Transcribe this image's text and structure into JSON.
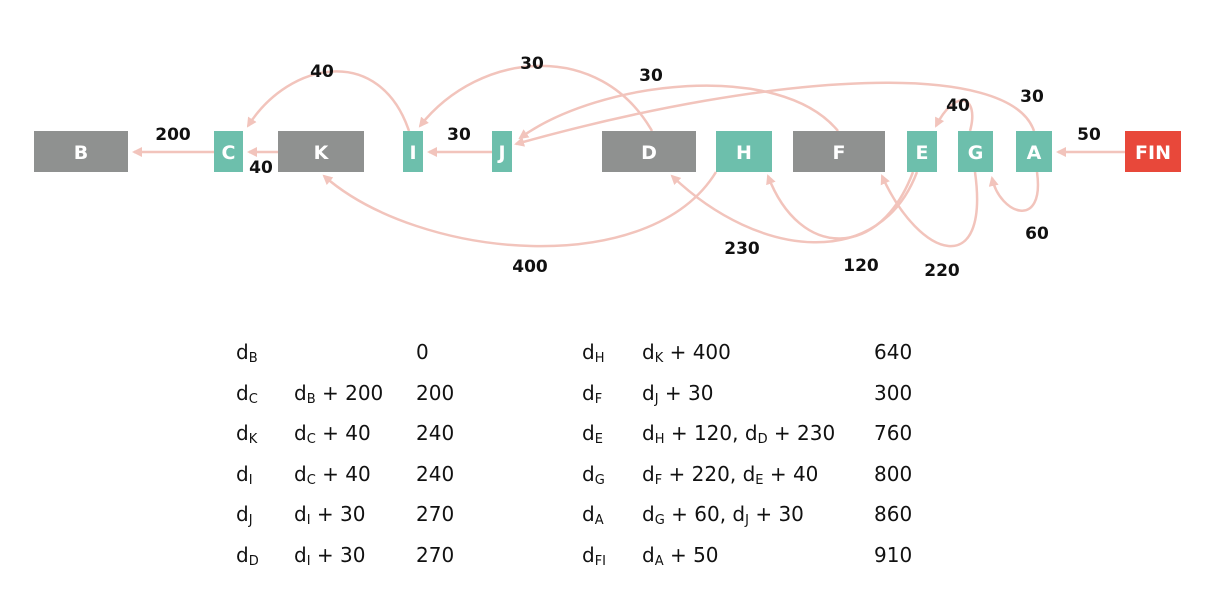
{
  "colors": {
    "gray": "#8f9190",
    "teal": "#6dbfac",
    "red": "#e8483a",
    "edge": "#f2c4bc"
  },
  "nodes": [
    {
      "id": "B",
      "label": "B",
      "color": "gray"
    },
    {
      "id": "C",
      "label": "C",
      "color": "teal"
    },
    {
      "id": "K",
      "label": "K",
      "color": "gray"
    },
    {
      "id": "I",
      "label": "I",
      "color": "teal"
    },
    {
      "id": "J",
      "label": "J",
      "color": "teal"
    },
    {
      "id": "D",
      "label": "D",
      "color": "gray"
    },
    {
      "id": "H",
      "label": "H",
      "color": "teal"
    },
    {
      "id": "F",
      "label": "F",
      "color": "gray"
    },
    {
      "id": "E",
      "label": "E",
      "color": "teal"
    },
    {
      "id": "G",
      "label": "G",
      "color": "teal"
    },
    {
      "id": "A",
      "label": "A",
      "color": "teal"
    },
    {
      "id": "FIN",
      "label": "FIN",
      "color": "red"
    }
  ],
  "edges": [
    {
      "from": "C",
      "to": "B",
      "weight": "200"
    },
    {
      "from": "K",
      "to": "C",
      "weight": "40"
    },
    {
      "from": "I",
      "to": "C",
      "weight": "40"
    },
    {
      "from": "J",
      "to": "I",
      "weight": "30"
    },
    {
      "from": "D",
      "to": "I",
      "weight": "30"
    },
    {
      "from": "F",
      "to": "J",
      "weight": "30"
    },
    {
      "from": "H",
      "to": "K",
      "weight": "400"
    },
    {
      "from": "E",
      "to": "D",
      "weight": "230"
    },
    {
      "from": "E",
      "to": "H",
      "weight": "120"
    },
    {
      "from": "G",
      "to": "F",
      "weight": "220"
    },
    {
      "from": "G",
      "to": "E",
      "weight": "40"
    },
    {
      "from": "A",
      "to": "J",
      "weight": "30"
    },
    {
      "from": "A",
      "to": "G",
      "weight": "60"
    },
    {
      "from": "FIN",
      "to": "A",
      "weight": "50"
    }
  ],
  "table": {
    "left": [
      {
        "var": "d",
        "sub": "B",
        "expr": [],
        "value": "0"
      },
      {
        "var": "d",
        "sub": "C",
        "expr": [
          [
            "d",
            "B",
            " + 200"
          ]
        ],
        "value": "200"
      },
      {
        "var": "d",
        "sub": "K",
        "expr": [
          [
            "d",
            "C",
            " + 40"
          ]
        ],
        "value": "240"
      },
      {
        "var": "d",
        "sub": "I",
        "expr": [
          [
            "d",
            "C",
            " + 40"
          ]
        ],
        "value": "240"
      },
      {
        "var": "d",
        "sub": "J",
        "expr": [
          [
            "d",
            "I",
            " + 30"
          ]
        ],
        "value": "270"
      },
      {
        "var": "d",
        "sub": "D",
        "expr": [
          [
            "d",
            "I",
            " + 30"
          ]
        ],
        "value": "270"
      }
    ],
    "right": [
      {
        "var": "d",
        "sub": "H",
        "expr": [
          [
            "d",
            "K",
            " + 400"
          ]
        ],
        "value": "640"
      },
      {
        "var": "d",
        "sub": "F",
        "expr": [
          [
            "d",
            "J",
            " + 30"
          ]
        ],
        "value": "300"
      },
      {
        "var": "d",
        "sub": "E",
        "expr": [
          [
            "d",
            "H",
            " + 120, "
          ],
          [
            "d",
            "D",
            " + 230"
          ]
        ],
        "value": "760"
      },
      {
        "var": "d",
        "sub": "G",
        "expr": [
          [
            "d",
            "F",
            " + 220, "
          ],
          [
            "d",
            "E",
            " + 40"
          ]
        ],
        "value": "800"
      },
      {
        "var": "d",
        "sub": "A",
        "expr": [
          [
            "d",
            "G",
            " + 60, "
          ],
          [
            "d",
            "J",
            " + 30"
          ]
        ],
        "value": "860"
      },
      {
        "var": "d",
        "sub": "FI",
        "expr": [
          [
            "d",
            "A",
            " + 50"
          ]
        ],
        "value": "910"
      }
    ]
  }
}
